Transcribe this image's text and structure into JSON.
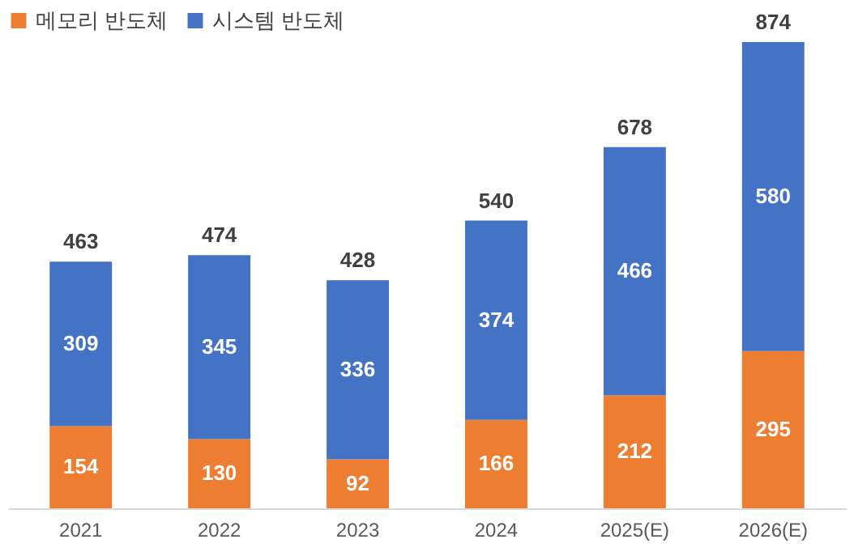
{
  "chart_data": {
    "type": "bar",
    "stacked": true,
    "categories": [
      "2021",
      "2022",
      "2023",
      "2024",
      "2025(E)",
      "2026(E)"
    ],
    "series": [
      {
        "name": "메모리 반도체",
        "color": "#ed7d31",
        "values": [
          154,
          130,
          92,
          166,
          212,
          295
        ]
      },
      {
        "name": "시스템 반도체",
        "color": "#4472c4",
        "values": [
          309,
          345,
          336,
          374,
          466,
          580
        ]
      }
    ],
    "data_labels": true,
    "totals": [
      "463",
      "474",
      "428",
      "540",
      "678",
      "874"
    ],
    "legend": "top",
    "grid": false
  }
}
